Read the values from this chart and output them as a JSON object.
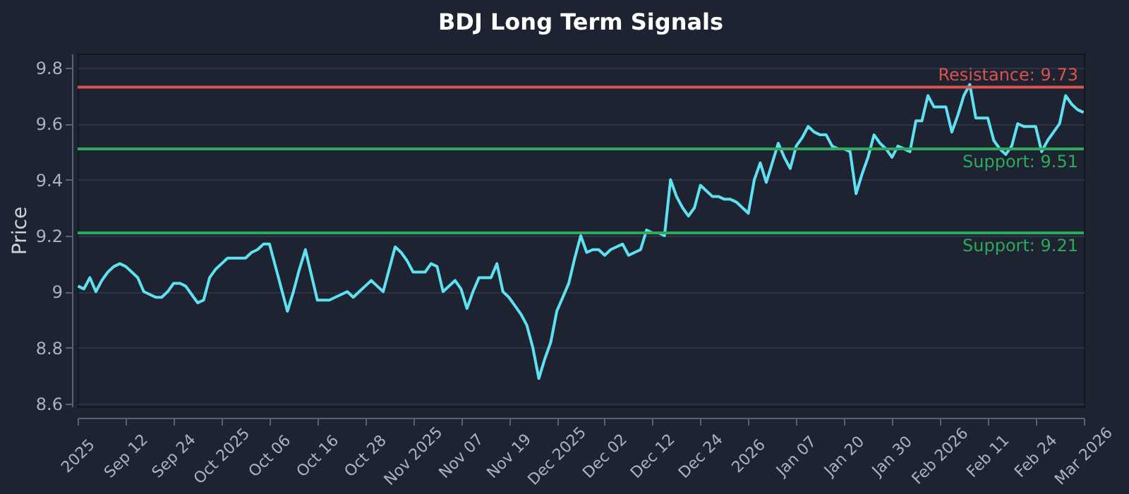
{
  "chart_data": {
    "type": "line",
    "title": "BDJ Long Term Signals",
    "ylabel": "Price",
    "categories": [
      "2025",
      null,
      null,
      null,
      null,
      null,
      null,
      null,
      "Sep 12",
      null,
      null,
      null,
      null,
      null,
      null,
      null,
      "Sep 24",
      null,
      null,
      null,
      null,
      null,
      null,
      null,
      "Oct 2025",
      null,
      null,
      null,
      null,
      null,
      null,
      null,
      "Oct 06",
      null,
      null,
      null,
      null,
      null,
      null,
      null,
      "Oct 16",
      null,
      null,
      null,
      null,
      null,
      null,
      null,
      "Oct 28",
      null,
      null,
      null,
      null,
      null,
      null,
      null,
      "Nov 2025",
      null,
      null,
      null,
      null,
      null,
      null,
      null,
      "Nov 07",
      null,
      null,
      null,
      null,
      null,
      null,
      null,
      "Nov 19",
      null,
      null,
      null,
      null,
      null,
      null,
      null,
      "Dec 2025",
      null,
      null,
      null,
      null,
      null,
      null,
      null,
      "Dec 02",
      null,
      null,
      null,
      null,
      null,
      null,
      null,
      "Dec 12",
      null,
      null,
      null,
      null,
      null,
      null,
      null,
      "Dec 24",
      null,
      null,
      null,
      null,
      null,
      null,
      null,
      "2026",
      null,
      null,
      null,
      null,
      null,
      null,
      null,
      "Jan 07",
      null,
      null,
      null,
      null,
      null,
      null,
      null,
      "Jan 20",
      null,
      null,
      null,
      null,
      null,
      null,
      null,
      "Jan 30",
      null,
      null,
      null,
      null,
      null,
      null,
      null,
      "Feb 2026",
      null,
      null,
      null,
      null,
      null,
      null,
      null,
      "Feb 11",
      null,
      null,
      null,
      null,
      null,
      null,
      null,
      "Feb 24",
      null,
      null,
      null,
      null,
      null,
      null,
      null,
      "Mar 2026"
    ],
    "series": [
      {
        "color": "#5ee1f0",
        "values": [
          9.02,
          9.01,
          9.05,
          9.0,
          9.04,
          9.07,
          9.09,
          9.1,
          9.09,
          9.07,
          9.05,
          9.0,
          8.99,
          8.98,
          8.98,
          9.0,
          9.03,
          9.03,
          9.02,
          8.99,
          8.96,
          8.97,
          9.05,
          9.08,
          9.1,
          9.12,
          9.12,
          9.12,
          9.12,
          9.14,
          9.15,
          9.17,
          9.17,
          9.09,
          9.01,
          8.93,
          9.0,
          9.08,
          9.15,
          9.06,
          8.97,
          8.97,
          8.97,
          8.98,
          8.99,
          9.0,
          8.98,
          9.0,
          9.02,
          9.04,
          9.02,
          9.0,
          9.08,
          9.16,
          9.14,
          9.11,
          9.07,
          9.07,
          9.07,
          9.1,
          9.09,
          9.0,
          9.02,
          9.04,
          9.01,
          8.94,
          9.0,
          9.05,
          9.05,
          9.05,
          9.1,
          9.0,
          8.98,
          8.95,
          8.92,
          8.88,
          8.8,
          8.69,
          8.76,
          8.82,
          8.93,
          8.98,
          9.03,
          9.12,
          9.2,
          9.14,
          9.15,
          9.15,
          9.13,
          9.15,
          9.16,
          9.17,
          9.13,
          9.14,
          9.15,
          9.22,
          9.21,
          9.21,
          9.2,
          9.4,
          9.34,
          9.3,
          9.27,
          9.3,
          9.38,
          9.36,
          9.34,
          9.34,
          9.33,
          9.33,
          9.32,
          9.3,
          9.28,
          9.4,
          9.46,
          9.39,
          9.46,
          9.53,
          9.48,
          9.44,
          9.52,
          9.55,
          9.59,
          9.57,
          9.56,
          9.56,
          9.52,
          9.51,
          9.51,
          9.5,
          9.35,
          9.42,
          9.48,
          9.56,
          9.53,
          9.51,
          9.48,
          9.52,
          9.51,
          9.5,
          9.61,
          9.61,
          9.7,
          9.66,
          9.66,
          9.66,
          9.57,
          9.63,
          9.7,
          9.74,
          9.62,
          9.62,
          9.62,
          9.54,
          9.51,
          9.49,
          9.52,
          9.6,
          9.59,
          9.59,
          9.59,
          9.5,
          9.54,
          9.57,
          9.6,
          9.7,
          9.67,
          9.65,
          9.64
        ]
      }
    ],
    "ylim": [
      8.59,
      9.85
    ],
    "yticks": [
      8.6,
      8.8,
      9.0,
      9.2,
      9.4,
      9.6,
      9.8
    ],
    "grid": "y",
    "ref_lines": [
      {
        "axis": "y",
        "value": 9.73,
        "label": "Resistance: 9.73",
        "color": "#d9534f"
      },
      {
        "axis": "y",
        "value": 9.51,
        "label": "Support: 9.51",
        "color": "#2eaa5c"
      },
      {
        "axis": "y",
        "value": 9.21,
        "label": "Support: 9.21",
        "color": "#2eaa5c"
      }
    ]
  }
}
